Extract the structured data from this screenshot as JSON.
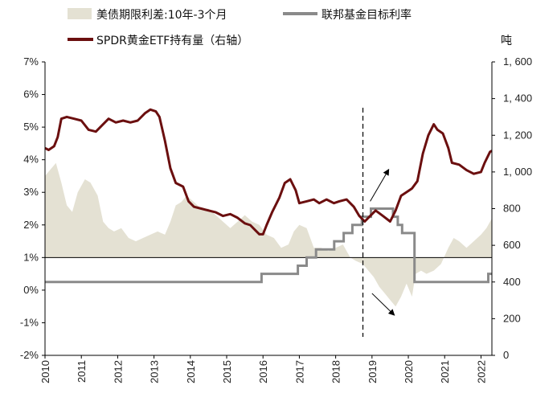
{
  "chart_data": {
    "type": "area+line",
    "legend": {
      "spread": "美债期限利差:10年-3个月",
      "fed_rate": "联邦基金目标利率",
      "spdr": "SPDR黄金ETF持有量（右轴）"
    },
    "right_unit": "吨",
    "left_axis": {
      "min": -2,
      "max": 7,
      "ticks": [
        "7%",
        "6%",
        "5%",
        "4%",
        "3%",
        "2%",
        "1%",
        "0%",
        "-1%",
        "-2%"
      ]
    },
    "right_axis": {
      "min": 0,
      "max": 1600,
      "ticks": [
        "1, 600",
        "1, 400",
        "1, 200",
        "1, 000",
        "800",
        "600",
        "400",
        "200",
        "0"
      ]
    },
    "x_axis": {
      "min": 2010,
      "max": 2022.3,
      "labels": [
        "2010",
        "2011",
        "2012",
        "2013",
        "2014",
        "2015",
        "2016",
        "2017",
        "2018",
        "2019",
        "2020",
        "2021",
        "2022"
      ]
    },
    "vline_x": 2018.75,
    "spread_series": [
      [
        2010.0,
        3.5
      ],
      [
        2010.15,
        3.7
      ],
      [
        2010.3,
        3.9
      ],
      [
        2010.45,
        3.3
      ],
      [
        2010.6,
        2.6
      ],
      [
        2010.75,
        2.4
      ],
      [
        2010.9,
        3.0
      ],
      [
        2011.1,
        3.4
      ],
      [
        2011.25,
        3.3
      ],
      [
        2011.45,
        2.9
      ],
      [
        2011.6,
        2.1
      ],
      [
        2011.75,
        1.9
      ],
      [
        2011.9,
        1.8
      ],
      [
        2012.1,
        1.9
      ],
      [
        2012.3,
        1.6
      ],
      [
        2012.5,
        1.5
      ],
      [
        2012.7,
        1.6
      ],
      [
        2012.9,
        1.7
      ],
      [
        2013.1,
        1.8
      ],
      [
        2013.3,
        1.7
      ],
      [
        2013.45,
        2.1
      ],
      [
        2013.6,
        2.6
      ],
      [
        2013.75,
        2.7
      ],
      [
        2013.9,
        2.9
      ],
      [
        2014.1,
        2.7
      ],
      [
        2014.3,
        2.5
      ],
      [
        2014.5,
        2.5
      ],
      [
        2014.7,
        2.3
      ],
      [
        2014.9,
        2.1
      ],
      [
        2015.1,
        1.9
      ],
      [
        2015.3,
        2.1
      ],
      [
        2015.5,
        2.3
      ],
      [
        2015.7,
        2.1
      ],
      [
        2015.9,
        2.0
      ],
      [
        2016.1,
        1.7
      ],
      [
        2016.3,
        1.6
      ],
      [
        2016.5,
        1.3
      ],
      [
        2016.7,
        1.4
      ],
      [
        2016.85,
        1.8
      ],
      [
        2017.0,
        2.0
      ],
      [
        2017.2,
        1.9
      ],
      [
        2017.4,
        1.3
      ],
      [
        2017.6,
        1.3
      ],
      [
        2017.8,
        1.2
      ],
      [
        2018.0,
        1.3
      ],
      [
        2018.2,
        1.4
      ],
      [
        2018.4,
        1.0
      ],
      [
        2018.55,
        0.9
      ],
      [
        2018.75,
        0.8
      ],
      [
        2018.9,
        0.6
      ],
      [
        2019.05,
        0.4
      ],
      [
        2019.2,
        0.1
      ],
      [
        2019.35,
        -0.1
      ],
      [
        2019.5,
        -0.3
      ],
      [
        2019.65,
        -0.5
      ],
      [
        2019.8,
        -0.2
      ],
      [
        2019.95,
        0.2
      ],
      [
        2020.1,
        -0.2
      ],
      [
        2020.2,
        0.5
      ],
      [
        2020.35,
        0.6
      ],
      [
        2020.5,
        0.5
      ],
      [
        2020.7,
        0.6
      ],
      [
        2020.9,
        0.8
      ],
      [
        2021.1,
        1.3
      ],
      [
        2021.25,
        1.6
      ],
      [
        2021.4,
        1.5
      ],
      [
        2021.6,
        1.3
      ],
      [
        2021.8,
        1.5
      ],
      [
        2022.0,
        1.7
      ],
      [
        2022.15,
        1.9
      ],
      [
        2022.3,
        2.2
      ]
    ],
    "fed_rate_series": [
      [
        2010.0,
        0.25
      ],
      [
        2015.96,
        0.25
      ],
      [
        2015.96,
        0.5
      ],
      [
        2016.96,
        0.5
      ],
      [
        2016.96,
        0.75
      ],
      [
        2017.2,
        0.75
      ],
      [
        2017.2,
        1.0
      ],
      [
        2017.46,
        1.0
      ],
      [
        2017.46,
        1.25
      ],
      [
        2017.96,
        1.25
      ],
      [
        2017.96,
        1.5
      ],
      [
        2018.22,
        1.5
      ],
      [
        2018.22,
        1.75
      ],
      [
        2018.46,
        1.75
      ],
      [
        2018.46,
        2.0
      ],
      [
        2018.72,
        2.0
      ],
      [
        2018.72,
        2.25
      ],
      [
        2018.97,
        2.25
      ],
      [
        2018.97,
        2.5
      ],
      [
        2019.58,
        2.5
      ],
      [
        2019.58,
        2.25
      ],
      [
        2019.71,
        2.25
      ],
      [
        2019.71,
        2.0
      ],
      [
        2019.83,
        2.0
      ],
      [
        2019.83,
        1.75
      ],
      [
        2020.17,
        1.75
      ],
      [
        2020.17,
        0.25
      ],
      [
        2022.2,
        0.25
      ],
      [
        2022.2,
        0.5
      ],
      [
        2022.3,
        0.5
      ]
    ],
    "spdr_series": [
      [
        2010.0,
        1130
      ],
      [
        2010.1,
        1120
      ],
      [
        2010.25,
        1140
      ],
      [
        2010.35,
        1190
      ],
      [
        2010.45,
        1290
      ],
      [
        2010.6,
        1300
      ],
      [
        2010.8,
        1290
      ],
      [
        2011.0,
        1280
      ],
      [
        2011.2,
        1230
      ],
      [
        2011.4,
        1220
      ],
      [
        2011.6,
        1260
      ],
      [
        2011.75,
        1290
      ],
      [
        2011.95,
        1270
      ],
      [
        2012.15,
        1280
      ],
      [
        2012.35,
        1270
      ],
      [
        2012.55,
        1280
      ],
      [
        2012.75,
        1320
      ],
      [
        2012.9,
        1340
      ],
      [
        2013.05,
        1330
      ],
      [
        2013.15,
        1300
      ],
      [
        2013.3,
        1170
      ],
      [
        2013.45,
        1020
      ],
      [
        2013.6,
        940
      ],
      [
        2013.8,
        920
      ],
      [
        2013.95,
        840
      ],
      [
        2014.1,
        810
      ],
      [
        2014.3,
        800
      ],
      [
        2014.5,
        790
      ],
      [
        2014.7,
        780
      ],
      [
        2014.9,
        760
      ],
      [
        2015.1,
        770
      ],
      [
        2015.3,
        750
      ],
      [
        2015.5,
        720
      ],
      [
        2015.65,
        710
      ],
      [
        2015.8,
        680
      ],
      [
        2015.9,
        660
      ],
      [
        2016.0,
        660
      ],
      [
        2016.1,
        710
      ],
      [
        2016.25,
        780
      ],
      [
        2016.45,
        860
      ],
      [
        2016.6,
        940
      ],
      [
        2016.75,
        960
      ],
      [
        2016.9,
        900
      ],
      [
        2017.0,
        830
      ],
      [
        2017.2,
        840
      ],
      [
        2017.4,
        850
      ],
      [
        2017.55,
        830
      ],
      [
        2017.75,
        850
      ],
      [
        2017.95,
        830
      ],
      [
        2018.1,
        840
      ],
      [
        2018.3,
        850
      ],
      [
        2018.5,
        810
      ],
      [
        2018.65,
        760
      ],
      [
        2018.8,
        730
      ],
      [
        2018.95,
        760
      ],
      [
        2019.1,
        790
      ],
      [
        2019.3,
        760
      ],
      [
        2019.5,
        730
      ],
      [
        2019.65,
        790
      ],
      [
        2019.8,
        870
      ],
      [
        2019.95,
        890
      ],
      [
        2020.1,
        910
      ],
      [
        2020.25,
        950
      ],
      [
        2020.4,
        1100
      ],
      [
        2020.55,
        1200
      ],
      [
        2020.7,
        1260
      ],
      [
        2020.8,
        1230
      ],
      [
        2020.95,
        1210
      ],
      [
        2021.1,
        1130
      ],
      [
        2021.2,
        1050
      ],
      [
        2021.4,
        1040
      ],
      [
        2021.6,
        1010
      ],
      [
        2021.8,
        990
      ],
      [
        2022.0,
        1000
      ],
      [
        2022.1,
        1050
      ],
      [
        2022.25,
        1110
      ],
      [
        2022.3,
        1115
      ]
    ],
    "annotations": [
      "arrow-up-spdr",
      "arrow-down-spread"
    ]
  },
  "colors": {
    "spread_fill": "#e4e1d3",
    "fed_rate": "#8a8a8a",
    "spdr": "#6b0f0f",
    "axis": "#000000",
    "zero_line": "#000000"
  }
}
